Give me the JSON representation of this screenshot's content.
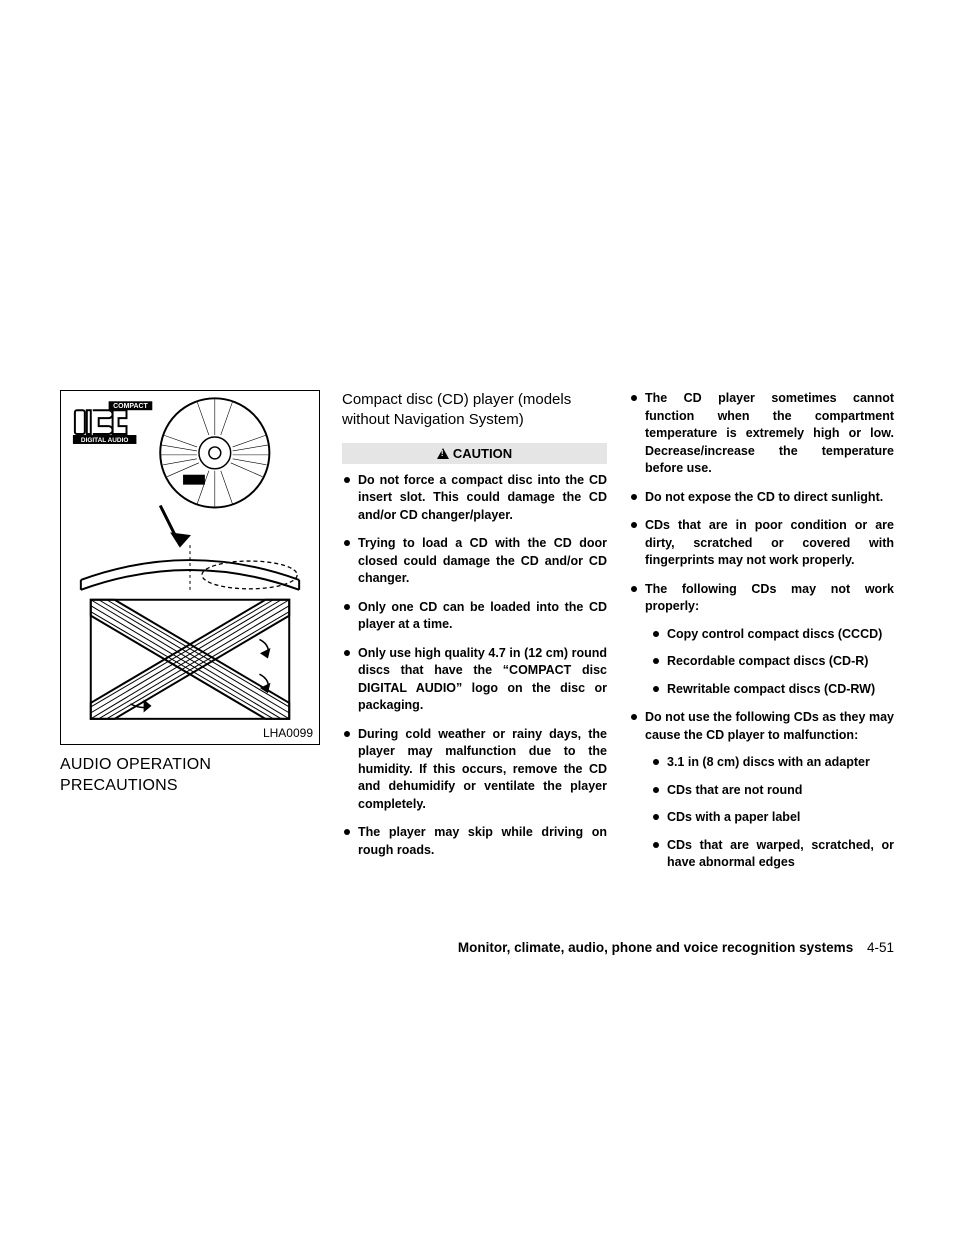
{
  "figure": {
    "label": "LHA0099",
    "logo_top": "COMPACT",
    "logo_bottom": "DIGITAL AUDIO",
    "border_color": "#000000",
    "bg_color": "#ffffff"
  },
  "section_title": "AUDIO OPERATION PRECAUTIONS",
  "sub_heading": "Compact disc (CD) player (models without Navigation System)",
  "caution_label": "CAUTION",
  "caution_bg": "#e5e5e5",
  "mid_bullets": [
    "Do not force a compact disc into the CD insert slot. This could damage the CD and/or CD changer/player.",
    "Trying to load a CD with the CD door closed could damage the CD and/or CD changer.",
    "Only one CD can be loaded into the CD player at a time.",
    "Only use high quality 4.7 in (12 cm) round discs that have the “COMPACT disc DIGITAL AUDIO” logo on the disc or packaging.",
    "During cold weather or rainy days, the player may malfunction due to the humidity. If this occurs, remove the CD and dehumidify or ventilate the player completely.",
    "The player may skip while driving on rough roads."
  ],
  "right_items": [
    {
      "text": "The CD player sometimes cannot function when the compartment temperature is extremely high or low. Decrease/increase the temperature before use.",
      "children": []
    },
    {
      "text": "Do not expose the CD to direct sunlight.",
      "children": []
    },
    {
      "text": "CDs that are in poor condition or are dirty, scratched or covered with fingerprints may not work properly.",
      "children": []
    },
    {
      "text": "The following CDs may not work properly:",
      "children": [
        "Copy control compact discs (CCCD)",
        "Recordable compact discs (CD-R)",
        "Rewritable compact discs (CD-RW)"
      ]
    },
    {
      "text": "Do not use the following CDs as they may cause the CD player to malfunction:",
      "children": [
        "3.1 in (8 cm) discs with an adapter",
        "CDs that are not round",
        "CDs with a paper label",
        "CDs that are warped, scratched, or have abnormal edges"
      ]
    }
  ],
  "footer": {
    "title": "Monitor, climate, audio, phone and voice recognition systems",
    "page": "4-51"
  },
  "styles": {
    "body_font_size": 12.5,
    "heading_font_size": 16,
    "bullet_line_height": 1.4,
    "text_color": "#000000",
    "page_bg": "#ffffff"
  }
}
